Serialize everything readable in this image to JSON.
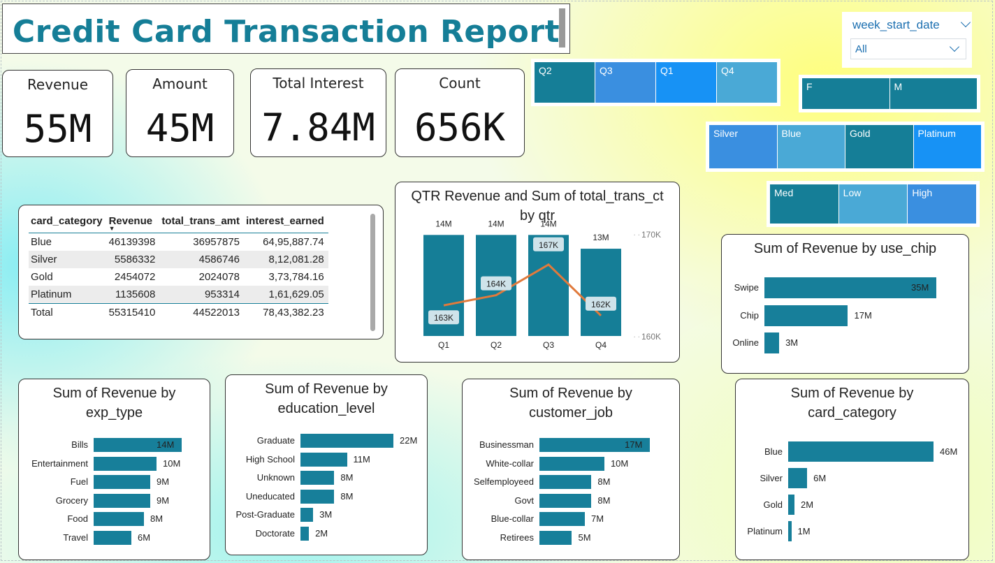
{
  "report_title": "Credit Card Transaction Report",
  "kpis": [
    {
      "label": "Revenue",
      "value": "55M"
    },
    {
      "label": "Amount",
      "value": "45M"
    },
    {
      "label": "Total Interest",
      "value": "7.84M"
    },
    {
      "label": "Count",
      "value": "656K"
    }
  ],
  "slicers": {
    "quarter": [
      "Q2",
      "Q3",
      "Q1",
      "Q4"
    ],
    "gender": [
      "F",
      "M"
    ],
    "card": [
      "Silver",
      "Blue",
      "Gold",
      "Platinum"
    ],
    "income": [
      "Med",
      "Low",
      "High"
    ],
    "week_start_date": {
      "label": "week_start_date",
      "value": "All"
    }
  },
  "colors": {
    "primary": "#157e97",
    "mid_blue": "#3a8fe0",
    "light_blue": "#4aa9d6",
    "bright_blue": "#1792f5",
    "line": "#e07a3c"
  },
  "matrix": {
    "headers": [
      "card_category",
      "Revenue",
      "total_trans_amt",
      "interest_earned"
    ],
    "rows": [
      [
        "Blue",
        "46139398",
        "36957875",
        "64,95,887.74"
      ],
      [
        "Silver",
        "5586332",
        "4586746",
        "8,12,081.28"
      ],
      [
        "Gold",
        "2454072",
        "2024078",
        "3,73,784.16"
      ],
      [
        "Platinum",
        "1135608",
        "953314",
        "1,61,629.05"
      ]
    ],
    "total": [
      "Total",
      "55315410",
      "44522013",
      "78,43,382.23"
    ]
  },
  "chart_data": [
    {
      "type": "bar",
      "title": "QTR Revenue and Sum of total_trans_ct by qtr",
      "categories": [
        "Q1",
        "Q2",
        "Q3",
        "Q4"
      ],
      "series": [
        {
          "values": [
            14,
            14,
            14,
            13
          ],
          "labels": [
            "14M",
            "14M",
            "14M",
            "13M"
          ]
        },
        {
          "values": [
            163,
            164,
            167,
            162
          ],
          "labels": [
            "163K",
            "164K",
            "167K",
            "162K"
          ]
        }
      ],
      "secondary_axis": {
        "ticks": [
          "170K",
          "160K"
        ],
        "range": [
          160,
          170
        ]
      }
    },
    {
      "type": "bar",
      "orientation": "horizontal",
      "title": "Sum of Revenue by use_chip",
      "categories": [
        "Swipe",
        "Chip",
        "Online"
      ],
      "values": [
        35,
        17,
        3
      ],
      "labels": [
        "35M",
        "17M",
        "3M"
      ]
    },
    {
      "type": "bar",
      "orientation": "horizontal",
      "title": "Sum of Revenue by exp_type",
      "categories": [
        "Bills",
        "Entertainment",
        "Fuel",
        "Grocery",
        "Food",
        "Travel"
      ],
      "values": [
        14,
        10,
        9,
        9,
        8,
        6
      ],
      "labels": [
        "14M",
        "10M",
        "9M",
        "9M",
        "8M",
        "6M"
      ]
    },
    {
      "type": "bar",
      "orientation": "horizontal",
      "title": "Sum of Revenue by education_level",
      "categories": [
        "Graduate",
        "High School",
        "Unknown",
        "Uneducated",
        "Post-Graduate",
        "Doctorate"
      ],
      "values": [
        22,
        11,
        8,
        8,
        3,
        2
      ],
      "labels": [
        "22M",
        "11M",
        "8M",
        "8M",
        "3M",
        "2M"
      ]
    },
    {
      "type": "bar",
      "orientation": "horizontal",
      "title": "Sum of Revenue by customer_job",
      "categories": [
        "Businessman",
        "White-collar",
        "Selfemployeed",
        "Govt",
        "Blue-collar",
        "Retirees"
      ],
      "values": [
        17,
        10,
        8,
        8,
        7,
        5
      ],
      "labels": [
        "17M",
        "10M",
        "8M",
        "8M",
        "7M",
        "5M"
      ]
    },
    {
      "type": "bar",
      "orientation": "horizontal",
      "title": "Sum of Revenue by card_category",
      "categories": [
        "Blue",
        "Silver",
        "Gold",
        "Platinum"
      ],
      "values": [
        46,
        6,
        2,
        1
      ],
      "labels": [
        "46M",
        "6M",
        "2M",
        "1M"
      ]
    }
  ]
}
